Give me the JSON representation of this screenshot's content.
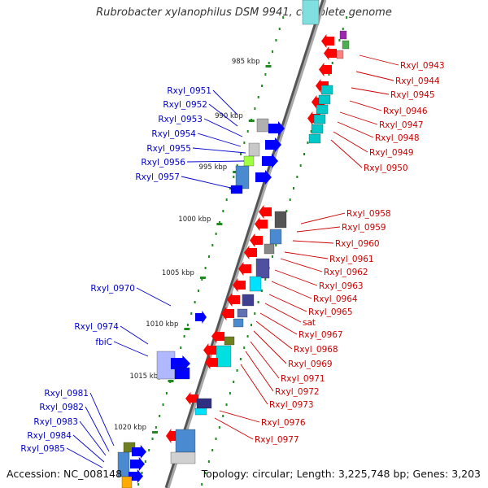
{
  "title": "Rubrobacter xylanophilus DSM 9941, complete genome",
  "footer": {
    "accession": "Accession: NC_008148",
    "topology": "Topology: circular; Length: 3,225,748 bp; Genes: 3,203"
  },
  "colors": {
    "backbone": "#8a8a8a",
    "tick": "#1f8a1f",
    "plus_strand_label": "#0000cc",
    "minus_strand_label": "#cc0000",
    "plus_gene": "#0000ff",
    "minus_gene": "#ff0000"
  },
  "kbp_ticks": [
    "985 kbp",
    "990 kbp",
    "995 kbp",
    "1000 kbp",
    "1005 kbp",
    "1010 kbp",
    "1015 kbp",
    "1020 kbp"
  ],
  "plus_strand_genes": [
    "Rxyl_0951",
    "Rxyl_0952",
    "Rxyl_0953",
    "Rxyl_0954",
    "Rxyl_0955",
    "Rxyl_0956",
    "Rxyl_0957",
    "Rxyl_0970",
    "Rxyl_0974",
    "fbiC",
    "Rxyl_0981",
    "Rxyl_0982",
    "Rxyl_0983",
    "Rxyl_0984",
    "Rxyl_0985"
  ],
  "minus_strand_genes": [
    "Rxyl_0943",
    "Rxyl_0944",
    "Rxyl_0945",
    "Rxyl_0946",
    "Rxyl_0947",
    "Rxyl_0948",
    "Rxyl_0949",
    "Rxyl_0950",
    "Rxyl_0958",
    "Rxyl_0959",
    "Rxyl_0960",
    "Rxyl_0961",
    "Rxyl_0962",
    "Rxyl_0963",
    "Rxyl_0964",
    "Rxyl_0965",
    "sat",
    "Rxyl_0967",
    "Rxyl_0968",
    "Rxyl_0969",
    "Rxyl_0971",
    "Rxyl_0972",
    "Rxyl_0973",
    "Rxyl_0976",
    "Rxyl_0977"
  ]
}
